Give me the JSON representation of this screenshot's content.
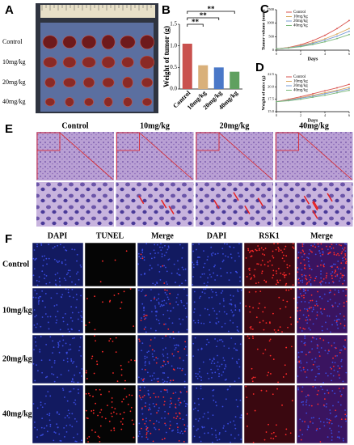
{
  "panel_labels": [
    "A",
    "B",
    "C",
    "D",
    "E",
    "F"
  ],
  "panel_a": {
    "rows": [
      "Control",
      "10mg/kg",
      "20mg/kg",
      "40mg/kg"
    ]
  },
  "chart_data": [
    {
      "type": "bar",
      "y_label": "Weight of tumor (g)",
      "categories": [
        "Control",
        "10mg/kg",
        "20mg/kg",
        "40mg/kg"
      ],
      "values": [
        1.05,
        0.55,
        0.5,
        0.4
      ],
      "colors": [
        "#c9514e",
        "#d9b07a",
        "#4a78c8",
        "#5fa05f"
      ],
      "ylim": [
        0,
        1.5
      ],
      "yticks": [
        {
          "value": 0,
          "label": "0.0"
        },
        {
          "value": 0.5,
          "label": "0.5"
        },
        {
          "value": 1,
          "label": "1.0"
        },
        {
          "value": 1.5,
          "label": "1.5"
        }
      ],
      "annotations": [
        "**",
        "**",
        "**"
      ]
    },
    {
      "type": "line",
      "y_label": "Tumor volume (mm³)",
      "x_label": "Days",
      "x": [
        0,
        1,
        2,
        3,
        4,
        5,
        6
      ],
      "xlim": [
        0,
        6
      ],
      "xticks": [
        0,
        2,
        4,
        6
      ],
      "ylim": [
        0,
        1500
      ],
      "yticks": [
        0,
        500,
        1000,
        1500
      ],
      "series": [
        {
          "name": "Control",
          "color": "#d9534f",
          "values": [
            50,
            100,
            200,
            350,
            550,
            800,
            1100
          ]
        },
        {
          "name": "10mg/kg",
          "color": "#d9a860",
          "values": [
            50,
            90,
            170,
            280,
            420,
            600,
            800
          ]
        },
        {
          "name": "20mg/kg",
          "color": "#7a9cd6",
          "values": [
            50,
            85,
            150,
            250,
            370,
            520,
            700
          ]
        },
        {
          "name": "40mg/kg",
          "color": "#7ab87a",
          "values": [
            50,
            80,
            130,
            210,
            310,
            430,
            580
          ]
        }
      ]
    },
    {
      "type": "line",
      "y_label": "Weight of mice (g)",
      "x_label": "Days",
      "x": [
        0,
        1,
        2,
        3,
        4,
        5,
        6
      ],
      "xlim": [
        0,
        6
      ],
      "xticks": [
        0,
        2,
        4,
        6
      ],
      "ylim": [
        15,
        22.5
      ],
      "yticks": [
        {
          "value": 15,
          "label": "15.0"
        },
        {
          "value": 17.5,
          "label": "17.5"
        },
        {
          "value": 20,
          "label": "20.0"
        },
        {
          "value": 22.5,
          "label": "22.5"
        }
      ],
      "series": [
        {
          "name": "Control",
          "color": "#d9534f",
          "values": [
            17,
            17.5,
            18,
            18.6,
            19.2,
            19.8,
            20.5
          ]
        },
        {
          "name": "10mg/kg",
          "color": "#d9a860",
          "values": [
            17,
            17.4,
            17.8,
            18.3,
            18.8,
            19.3,
            19.9
          ]
        },
        {
          "name": "20mg/kg",
          "color": "#7a9cd6",
          "values": [
            17,
            17.3,
            17.7,
            18.1,
            18.6,
            19.1,
            19.6
          ]
        },
        {
          "name": "40mg/kg",
          "color": "#7ab87a",
          "values": [
            17,
            17.2,
            17.5,
            17.9,
            18.3,
            18.8,
            19.3
          ]
        }
      ]
    }
  ],
  "panel_e": {
    "columns": [
      "Control",
      "10mg/kg",
      "20mg/kg",
      "40mg/kg"
    ]
  },
  "panel_f": {
    "columns": [
      "DAPI",
      "TUNEL",
      "Merge",
      "DAPI",
      "RSK1",
      "Merge"
    ],
    "rows": [
      "Control",
      "10mg/kg",
      "20mg/kg",
      "40mg/kg"
    ]
  }
}
